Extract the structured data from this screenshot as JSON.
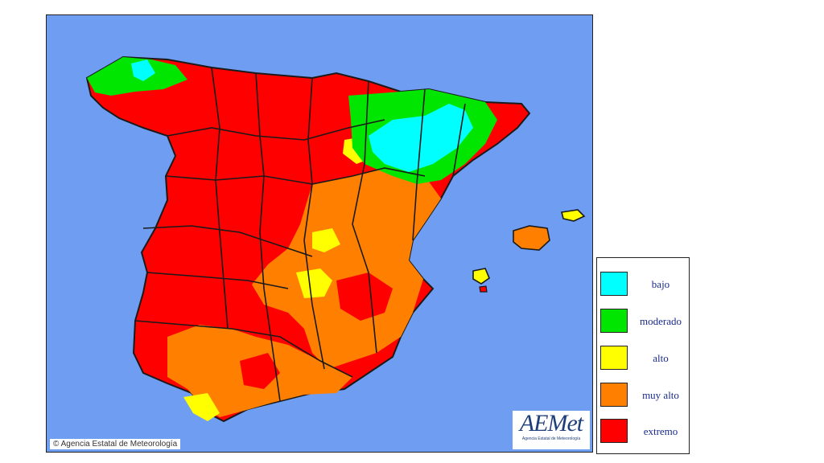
{
  "copyright": "© Agencia Estatal de Meteorología",
  "logo": {
    "text": "AEMet",
    "subtitle": "Agencia Estatal de Meteorología"
  },
  "colors": {
    "sea": "#6e9df2",
    "border": "#1a1a1a"
  },
  "legend": [
    {
      "label": "bajo",
      "color": "#00ffff"
    },
    {
      "label": "moderado",
      "color": "#00e600"
    },
    {
      "label": "alto",
      "color": "#ffff00"
    },
    {
      "label": "muy alto",
      "color": "#ff8000"
    },
    {
      "label": "extremo",
      "color": "#ff0000"
    }
  ]
}
